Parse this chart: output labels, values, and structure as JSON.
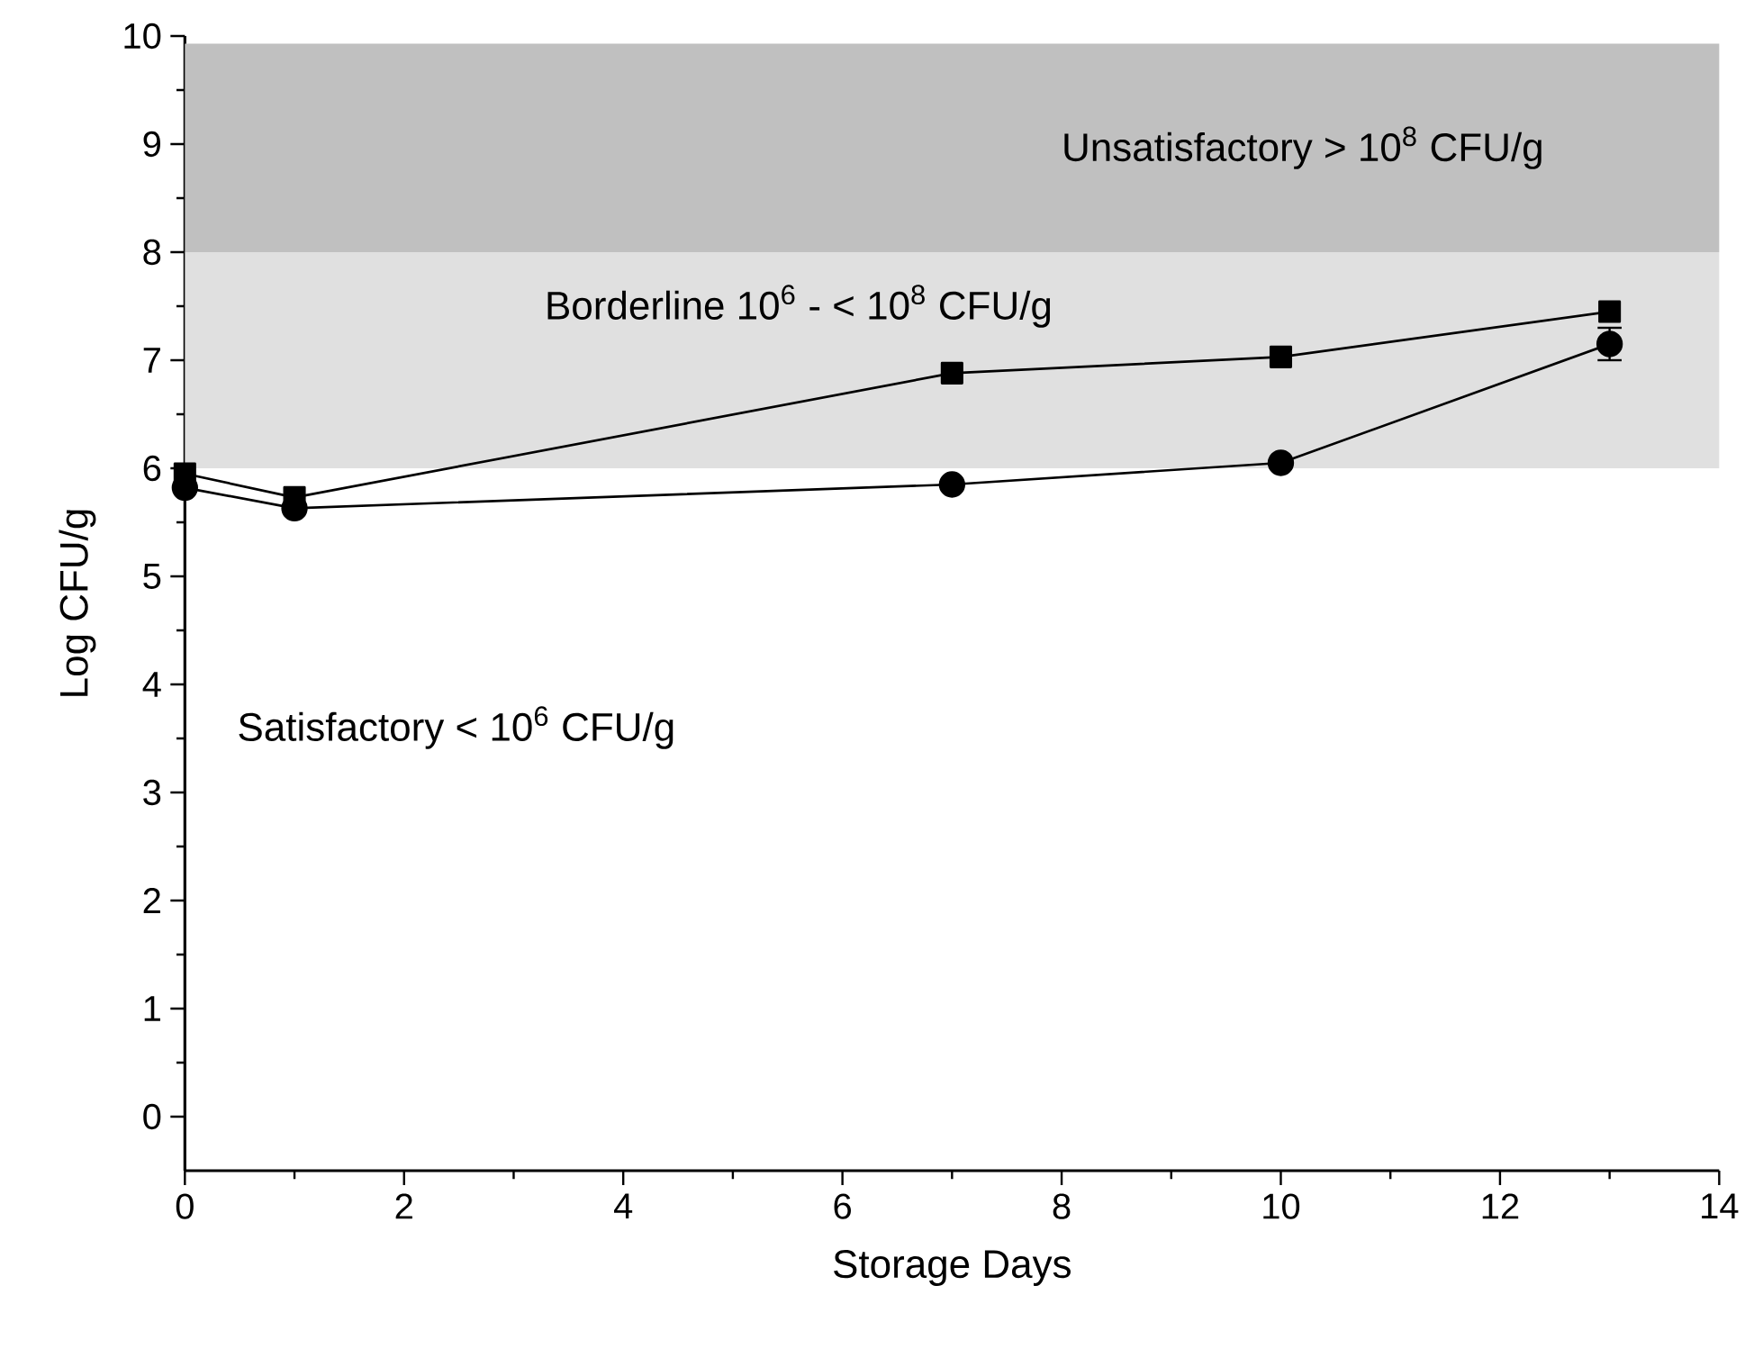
{
  "chart_data": {
    "type": "line",
    "xlabel": "Storage Days",
    "ylabel": "Log CFU/g",
    "x": [
      0,
      1,
      7,
      10,
      13
    ],
    "series": [
      {
        "color": "#000000",
        "marker": "square",
        "values": [
          5.95,
          5.73,
          6.88,
          7.03,
          7.45
        ]
      },
      {
        "color": "#000000",
        "marker": "circle",
        "values": [
          5.82,
          5.63,
          5.85,
          6.05,
          7.15
        ],
        "errors": [
          null,
          null,
          null,
          null,
          0.15
        ]
      }
    ],
    "xlim": [
      0,
      14
    ],
    "xticks": [
      0,
      2,
      4,
      6,
      8,
      10,
      12,
      14
    ],
    "ylim": [
      -0.5,
      10
    ],
    "yticks": [
      0,
      1,
      2,
      3,
      4,
      5,
      6,
      7,
      8,
      9,
      10
    ],
    "bands": [
      {
        "axis": "y",
        "from": 8,
        "to": 9.93,
        "label": "Unsatisfactory > 10$^{8}$ CFU/g",
        "color": "#c0c0c0"
      },
      {
        "axis": "y",
        "from": 6,
        "to": 8,
        "label": "Borderline 10$^{6}$ - < 10$^{8}$ CFU/g",
        "color": "#e0e0e0"
      }
    ],
    "annotations": [
      "Satisfactory < 10$^{6}$ CFU/g"
    ],
    "grid": false,
    "line_style": "solid"
  }
}
